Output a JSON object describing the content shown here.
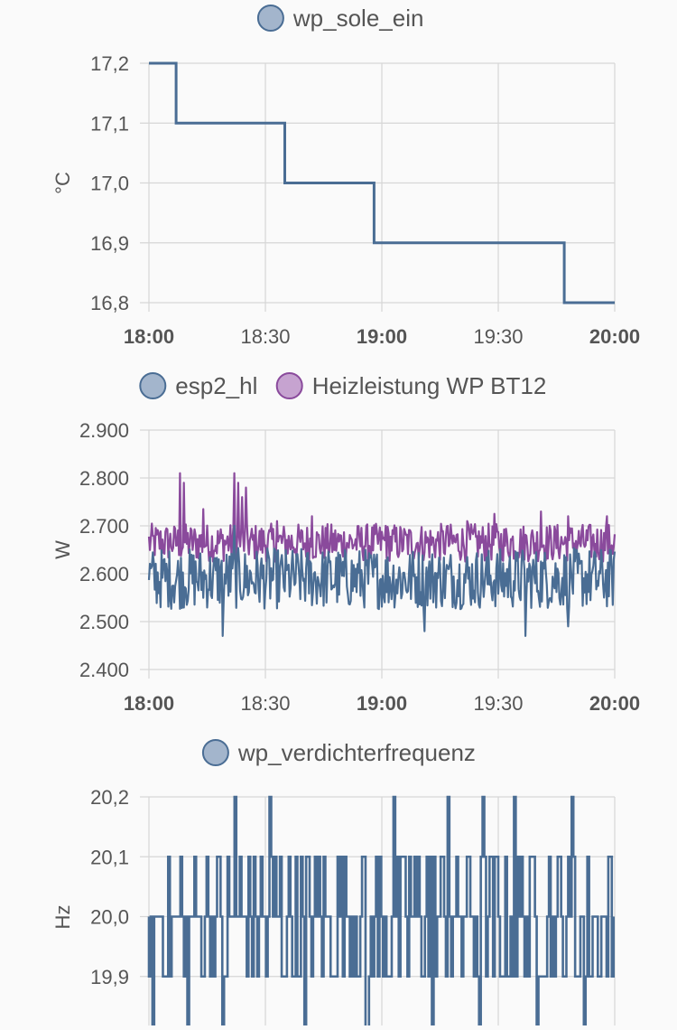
{
  "colors": {
    "blue": "#4a6d94",
    "blue_fill": "#a3b5cc",
    "purple": "#8a4a9c",
    "purple_fill": "#c6a3d0",
    "grid": "#d6d6d6",
    "text": "#555555"
  },
  "chart_data": [
    {
      "type": "line",
      "step": true,
      "legend": [
        "wp_sole_ein"
      ],
      "ylabel": "°C",
      "ylim": [
        16.8,
        17.2
      ],
      "yticks": [
        "17,2",
        "17,1",
        "17,0",
        "16,9",
        "16,8"
      ],
      "xticks": [
        "18:00",
        "18:30",
        "19:00",
        "19:30",
        "20:00"
      ],
      "xticks_bold": [
        true,
        false,
        true,
        false,
        true
      ],
      "x_range": [
        "18:00",
        "20:00"
      ],
      "grid": true,
      "series": [
        {
          "name": "wp_sole_ein",
          "color": "blue",
          "points": [
            [
              "18:00",
              17.2
            ],
            [
              "18:07",
              17.1
            ],
            [
              "18:35",
              17.0
            ],
            [
              "18:58",
              16.9
            ],
            [
              "19:47",
              16.8
            ],
            [
              "20:00",
              16.8
            ]
          ]
        }
      ]
    },
    {
      "type": "line",
      "legend": [
        "esp2_hl",
        "Heizleistung WP BT12"
      ],
      "ylabel": "W",
      "ylim": [
        2400,
        2900
      ],
      "yticks": [
        "2.900",
        "2.800",
        "2.700",
        "2.600",
        "2.500",
        "2.400"
      ],
      "xticks": [
        "18:00",
        "18:30",
        "19:00",
        "19:30",
        "20:00"
      ],
      "xticks_bold": [
        true,
        false,
        true,
        false,
        true
      ],
      "x_range": [
        "18:00",
        "20:00"
      ],
      "grid": true,
      "series": [
        {
          "name": "Heizleistung WP BT12",
          "color": "purple",
          "mean": 2665,
          "noise": 25,
          "min": 2620,
          "max": 2710,
          "spikes": [
            [
              "18:08",
              2810
            ],
            [
              "18:09",
              2790
            ],
            [
              "18:14",
              2735
            ],
            [
              "18:22",
              2810
            ],
            [
              "18:23",
              2790
            ],
            [
              "18:24",
              2760
            ],
            [
              "18:25",
              2780
            ],
            [
              "18:33",
              2710
            ],
            [
              "18:42",
              2720
            ],
            [
              "19:01",
              2700
            ],
            [
              "19:17",
              2700
            ],
            [
              "19:22",
              2710
            ],
            [
              "19:29",
              2725
            ],
            [
              "19:41",
              2730
            ],
            [
              "19:48",
              2720
            ],
            [
              "19:58",
              2720
            ]
          ]
        },
        {
          "name": "esp2_hl",
          "color": "blue",
          "mean": 2590,
          "noise": 40,
          "min": 2500,
          "max": 2680,
          "spikes": [
            [
              "18:19",
              2470
            ],
            [
              "18:22",
              2700
            ],
            [
              "19:11",
              2480
            ],
            [
              "19:37",
              2470
            ],
            [
              "19:48",
              2490
            ]
          ]
        }
      ]
    },
    {
      "type": "line",
      "step": true,
      "legend": [
        "wp_verdichterfrequenz"
      ],
      "ylabel": "Hz",
      "ylim": [
        19.8,
        20.2
      ],
      "yticks": [
        "20,2",
        "20,1",
        "20,0",
        "19,9"
      ],
      "xticks": [],
      "x_range": [
        "18:00",
        "20:00"
      ],
      "grid": true,
      "series": [
        {
          "name": "wp_verdichterfrequenz",
          "color": "blue",
          "levels": [
            19.9,
            20.0,
            20.1
          ],
          "spikes_high": [
            [
              "18:22",
              20.2
            ],
            [
              "18:31",
              20.2
            ],
            [
              "19:03",
              20.2
            ],
            [
              "19:17",
              20.2
            ],
            [
              "19:26",
              20.2
            ],
            [
              "19:34",
              20.2
            ],
            [
              "19:49",
              20.2
            ]
          ],
          "spikes_low": [
            [
              "18:01",
              19.8
            ],
            [
              "18:10",
              19.8
            ],
            [
              "18:19",
              19.8
            ],
            [
              "18:40",
              19.8
            ],
            [
              "18:56",
              19.8
            ],
            [
              "19:13",
              19.8
            ],
            [
              "19:25",
              19.8
            ],
            [
              "19:40",
              19.8
            ],
            [
              "19:52",
              19.8
            ]
          ]
        }
      ]
    }
  ]
}
